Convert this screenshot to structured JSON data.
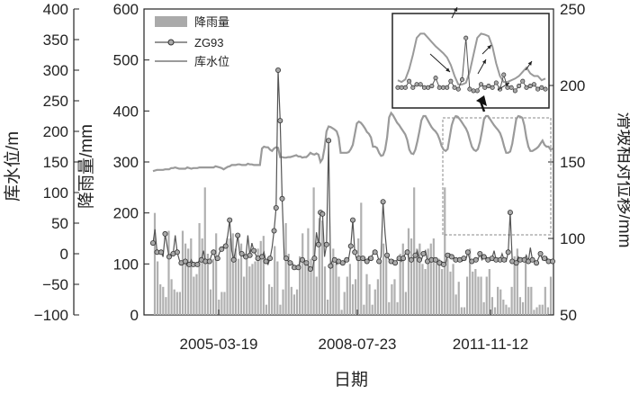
{
  "chart_data": {
    "type": "bar+line",
    "xlabel": "日期",
    "x_ticks": [
      "2005-03-19",
      "2008-07-23",
      "2011-11-12"
    ],
    "axes": {
      "reservoir_level": {
        "label": "库水位/m",
        "ylim": [
          -100,
          400
        ],
        "ticks": [
          -100,
          -50,
          0,
          50,
          100,
          150,
          200,
          250,
          300,
          350,
          400
        ]
      },
      "rainfall": {
        "label": "降雨量/mm",
        "ylim": [
          0,
          600
        ],
        "ticks": [
          0,
          100,
          200,
          300,
          400,
          500,
          600
        ]
      },
      "displacement": {
        "label": "滑坡相对位移/mm",
        "ylim": [
          50,
          250
        ],
        "ticks": [
          50,
          100,
          150,
          200,
          250
        ]
      }
    },
    "legend": {
      "position": "top-left",
      "entries": [
        "降雨量",
        "ZG93",
        "库水位"
      ]
    },
    "series": [
      {
        "name": "降雨量",
        "type": "bar",
        "axis": "rainfall",
        "values": [
          200,
          105,
          60,
          55,
          35,
          165,
          70,
          50,
          45,
          45,
          165,
          140,
          130,
          150,
          75,
          80,
          180,
          150,
          250,
          120,
          50,
          110,
          160,
          30,
          45,
          45,
          150,
          150,
          160,
          130,
          110,
          140,
          75,
          110,
          95,
          100,
          105,
          130,
          145,
          155,
          20,
          60,
          55,
          135,
          105,
          20,
          50,
          180,
          120,
          55,
          40,
          50,
          115,
          160,
          100,
          170,
          110,
          250,
          75,
          190,
          185,
          95,
          30,
          100,
          130,
          100,
          75,
          10,
          45,
          75,
          100,
          60,
          70,
          150,
          220,
          20,
          80,
          60,
          20,
          50,
          70,
          105,
          140,
          120,
          25,
          60,
          70,
          25,
          120,
          140,
          45,
          170,
          150,
          250,
          130,
          140,
          100,
          90,
          130,
          140,
          150,
          110,
          110,
          90,
          250,
          110,
          85,
          100,
          40,
          65,
          15,
          15,
          75,
          130,
          85,
          90,
          75,
          75,
          25,
          75,
          90,
          35,
          15,
          55,
          50,
          30,
          20,
          15,
          55,
          115,
          130,
          35,
          25,
          110,
          55,
          55,
          10,
          15,
          20,
          20,
          55,
          15,
          75
        ]
      },
      {
        "name": "ZG93",
        "type": "line",
        "axis": "displacement",
        "values": [
          97,
          106,
          91,
          90,
          91,
          88,
          103,
          95,
          88,
          90,
          90,
          102,
          91,
          86,
          84,
          83,
          85,
          82,
          83,
          86,
          83,
          82,
          83,
          86,
          86,
          92,
          85,
          84,
          85,
          89,
          91,
          86,
          87,
          91,
          93,
          95,
          95,
          102,
          112,
          92,
          86,
          93,
          102,
          90,
          90,
          88,
          88,
          102,
          89,
          97,
          92,
          89,
          87,
          87,
          88,
          91,
          85,
          83,
          87,
          94,
          105,
          120,
          210,
          177,
          126,
          88,
          87,
          85,
          84,
          84,
          81,
          80,
          81,
          86,
          86,
          86,
          84,
          82,
          80,
          80,
          87,
          104,
          96,
          117,
          116,
          88,
          96,
          164,
          82,
          86,
          86,
          83,
          85,
          84,
          84,
          84,
          86,
          87,
          95,
          112,
          91,
          86,
          87,
          87,
          87,
          85,
          85,
          88,
          87,
          90,
          91,
          90,
          85,
          88,
          124,
          103,
          89,
          86,
          85,
          86,
          84,
          86,
          87,
          85,
          87,
          90,
          91,
          86,
          86,
          87,
          89,
          92,
          86,
          86,
          90,
          92,
          85,
          85,
          86,
          87,
          86,
          85,
          84,
          85,
          83,
          84,
          89,
          90,
          88,
          87,
          86,
          86,
          86,
          85,
          87,
          86,
          91,
          86,
          85,
          86,
          86,
          86,
          90,
          86,
          88,
          88,
          86,
          86,
          87,
          92,
          86,
          86,
          86,
          90,
          86,
          85,
          91,
          117,
          85,
          84,
          84,
          88,
          86,
          87,
          86,
          89,
          85,
          94,
          86,
          86,
          84,
          87,
          90,
          86,
          87,
          88,
          85,
          86,
          85
        ]
      },
      {
        "name": "库水位",
        "type": "line",
        "axis": "reservoir_level",
        "values": [
          135,
          136,
          137,
          137,
          137,
          137,
          138,
          138,
          138,
          140,
          140,
          141,
          140,
          139,
          139,
          139,
          139,
          141,
          140,
          139,
          140,
          140,
          140,
          141,
          141,
          141,
          141,
          141,
          141,
          141,
          141,
          143,
          142,
          141,
          140,
          138,
          140,
          142,
          143,
          145,
          145,
          145,
          146,
          146,
          145,
          145,
          145,
          147,
          146,
          146,
          145,
          145,
          145,
          145,
          172,
          175,
          174,
          174,
          170,
          168,
          172,
          174,
          173,
          158,
          158,
          157,
          157,
          158,
          158,
          159,
          160,
          161,
          159,
          159,
          157,
          158,
          158,
          161,
          165,
          163,
          162,
          164,
          162,
          150,
          155,
          173,
          200,
          208,
          207,
          205,
          203,
          200,
          190,
          165,
          165,
          165,
          165,
          166,
          171,
          178,
          195,
          213,
          216,
          214,
          210,
          205,
          199,
          196,
          190,
          175,
          175,
          173,
          165,
          160,
          161,
          170,
          190,
          223,
          230,
          226,
          220,
          214,
          210,
          205,
          200,
          195,
          186,
          170,
          164,
          163,
          170,
          184,
          200,
          218,
          225,
          225,
          219,
          213,
          207,
          203,
          200,
          195,
          187,
          176,
          170,
          168,
          171,
          190,
          210,
          220,
          225,
          224,
          220,
          215,
          210,
          205,
          198,
          186,
          175,
          170,
          168,
          171,
          183,
          200,
          220,
          225,
          225,
          220,
          215,
          210,
          206,
          202,
          197,
          188,
          175,
          165,
          165,
          167,
          180,
          200,
          220,
          225,
          224,
          222,
          210,
          190,
          175,
          168,
          168,
          170,
          172,
          175,
          180,
          185,
          178,
          175,
          175,
          170,
          172
        ]
      }
    ],
    "inset": {
      "type": "line",
      "series": [
        "ZG93",
        "库水位"
      ]
    }
  }
}
